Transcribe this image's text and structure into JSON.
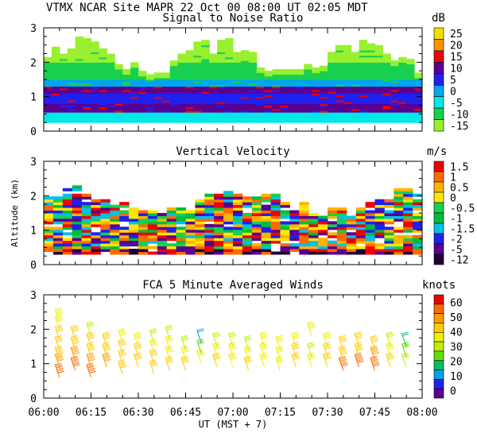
{
  "header": {
    "title": "VTMX  NCAR Site  MAPR 22 Oct 00  08:00 UT  02:05  MDT"
  },
  "chart_data": [
    {
      "type": "heatmap",
      "title": "Signal to Noise Ratio",
      "xlim_minutes": [
        0,
        120
      ],
      "ylim": [
        0,
        3
      ],
      "yticks": [
        "0",
        "1",
        "2",
        "3"
      ],
      "data_range_km": [
        0.25,
        3.0
      ],
      "colorbar": {
        "unit": "dB",
        "labels": [
          "25",
          "20",
          "15",
          "10",
          "5",
          "0",
          "-5",
          "-10",
          "-15"
        ],
        "colors": [
          "#f5df00",
          "#ff9000",
          "#f00000",
          "#5a0090",
          "#2020ee",
          "#00a5ee",
          "#00e8e8",
          "#18d050",
          "#98f030"
        ]
      },
      "profile_color_by_altitude": [
        {
          "alt": 0.3,
          "color": "#00e8e8"
        },
        {
          "alt": 0.5,
          "color": "#5a0090"
        },
        {
          "alt": 0.8,
          "color": "#2020ee"
        },
        {
          "alt": 1.1,
          "color": "#5a0090"
        },
        {
          "alt": 1.3,
          "color": "#00a5ee"
        },
        {
          "alt": 1.5,
          "color": "#18d050"
        },
        {
          "alt": 2.0,
          "color": "#98f030"
        }
      ]
    },
    {
      "type": "heatmap",
      "title": "Vertical Velocity",
      "ylabel": "Altitude (km)",
      "xlim_minutes": [
        0,
        120
      ],
      "ylim": [
        0,
        3
      ],
      "yticks": [
        "0",
        "1",
        "2",
        "3"
      ],
      "data_range_km": [
        0.3,
        2.2
      ],
      "colorbar": {
        "unit": "m/s",
        "labels": [
          "1.5",
          "1",
          "0.5",
          "0",
          "-0.5",
          "-1",
          "-1.5",
          "-2",
          "-5",
          "-12"
        ],
        "colors": [
          "#f00000",
          "#ff6a00",
          "#ffb400",
          "#ffe800",
          "#18d050",
          "#00bb40",
          "#00c0ee",
          "#2020ee",
          "#5a0090",
          "#200030"
        ]
      }
    },
    {
      "type": "scatter",
      "title": "FCA 5 Minute Averaged Winds",
      "xlabel": "UT  (MST + 7)",
      "xlim_minutes": [
        0,
        120
      ],
      "xticks": [
        "06:00",
        "06:15",
        "06:30",
        "06:45",
        "07:00",
        "07:15",
        "07:30",
        "07:45",
        "08:00"
      ],
      "ylim": [
        0,
        3
      ],
      "yticks": [
        "0",
        "1",
        "2",
        "3"
      ],
      "colorbar": {
        "unit": "knots",
        "labels": [
          "60",
          "50",
          "40",
          "30",
          "20",
          "10",
          "0"
        ],
        "colors": [
          "#f00000",
          "#ff6a00",
          "#ff9a00",
          "#ffcc00",
          "#f0f000",
          "#c0f000",
          "#60e000",
          "#00c060",
          "#00a0f0",
          "#2020ee",
          "#5a0090"
        ]
      },
      "profile_times_minutes": [
        5,
        10,
        15,
        20,
        25,
        30,
        35,
        40,
        45,
        50,
        55,
        60,
        65,
        70,
        75,
        80,
        85,
        90,
        95,
        100,
        105,
        110,
        115
      ],
      "barbs": [
        {
          "t": 5,
          "alt": 0.6,
          "kt": 55
        },
        {
          "t": 5,
          "alt": 0.9,
          "kt": 50
        },
        {
          "t": 5,
          "alt": 1.1,
          "kt": 45
        },
        {
          "t": 5,
          "alt": 1.4,
          "kt": 40
        },
        {
          "t": 5,
          "alt": 1.7,
          "kt": 40
        },
        {
          "t": 5,
          "alt": 2.0,
          "kt": 35
        },
        {
          "t": 5,
          "alt": 2.2,
          "kt": 35
        },
        {
          "t": 10,
          "alt": 0.8,
          "kt": 55
        },
        {
          "t": 10,
          "alt": 1.1,
          "kt": 50
        },
        {
          "t": 10,
          "alt": 1.4,
          "kt": 45
        },
        {
          "t": 10,
          "alt": 1.7,
          "kt": 40
        },
        {
          "t": 15,
          "alt": 0.6,
          "kt": 55
        },
        {
          "t": 15,
          "alt": 0.9,
          "kt": 50
        },
        {
          "t": 15,
          "alt": 1.2,
          "kt": 45
        },
        {
          "t": 15,
          "alt": 1.5,
          "kt": 40
        },
        {
          "t": 15,
          "alt": 1.8,
          "kt": 30
        },
        {
          "t": 20,
          "alt": 0.9,
          "kt": 50
        },
        {
          "t": 20,
          "alt": 1.2,
          "kt": 45
        },
        {
          "t": 20,
          "alt": 1.5,
          "kt": 40
        },
        {
          "t": 25,
          "alt": 0.7,
          "kt": 45
        },
        {
          "t": 25,
          "alt": 1.0,
          "kt": 40
        },
        {
          "t": 25,
          "alt": 1.3,
          "kt": 40
        },
        {
          "t": 25,
          "alt": 1.6,
          "kt": 35
        },
        {
          "t": 30,
          "alt": 0.9,
          "kt": 40
        },
        {
          "t": 30,
          "alt": 1.2,
          "kt": 40
        },
        {
          "t": 30,
          "alt": 1.5,
          "kt": 35
        },
        {
          "t": 35,
          "alt": 0.7,
          "kt": 40
        },
        {
          "t": 35,
          "alt": 1.0,
          "kt": 40
        },
        {
          "t": 35,
          "alt": 1.3,
          "kt": 35
        },
        {
          "t": 35,
          "alt": 1.6,
          "kt": 30
        },
        {
          "t": 40,
          "alt": 0.8,
          "kt": 40
        },
        {
          "t": 40,
          "alt": 1.1,
          "kt": 35
        },
        {
          "t": 40,
          "alt": 1.4,
          "kt": 35
        },
        {
          "t": 40,
          "alt": 1.7,
          "kt": 30
        },
        {
          "t": 45,
          "alt": 0.8,
          "kt": 40
        },
        {
          "t": 45,
          "alt": 1.1,
          "kt": 35
        },
        {
          "t": 45,
          "alt": 1.4,
          "kt": 30
        },
        {
          "t": 50,
          "alt": 1.0,
          "kt": 35
        },
        {
          "t": 50,
          "alt": 1.3,
          "kt": 25
        },
        {
          "t": 50,
          "alt": 1.6,
          "kt": 15
        },
        {
          "t": 55,
          "alt": 0.9,
          "kt": 40
        },
        {
          "t": 55,
          "alt": 1.2,
          "kt": 35
        },
        {
          "t": 55,
          "alt": 1.5,
          "kt": 30
        },
        {
          "t": 60,
          "alt": 0.9,
          "kt": 35
        },
        {
          "t": 60,
          "alt": 1.2,
          "kt": 35
        },
        {
          "t": 60,
          "alt": 1.5,
          "kt": 30
        },
        {
          "t": 65,
          "alt": 0.8,
          "kt": 40
        },
        {
          "t": 65,
          "alt": 1.1,
          "kt": 35
        },
        {
          "t": 65,
          "alt": 1.4,
          "kt": 30
        },
        {
          "t": 70,
          "alt": 0.9,
          "kt": 35
        },
        {
          "t": 70,
          "alt": 1.2,
          "kt": 35
        },
        {
          "t": 70,
          "alt": 1.5,
          "kt": 35
        },
        {
          "t": 75,
          "alt": 0.8,
          "kt": 35
        },
        {
          "t": 75,
          "alt": 1.1,
          "kt": 35
        },
        {
          "t": 75,
          "alt": 1.4,
          "kt": 35
        },
        {
          "t": 80,
          "alt": 0.9,
          "kt": 40
        },
        {
          "t": 80,
          "alt": 1.2,
          "kt": 40
        },
        {
          "t": 80,
          "alt": 1.5,
          "kt": 35
        },
        {
          "t": 85,
          "alt": 0.9,
          "kt": 35
        },
        {
          "t": 85,
          "alt": 1.2,
          "kt": 30
        },
        {
          "t": 85,
          "alt": 1.8,
          "kt": 35
        },
        {
          "t": 90,
          "alt": 0.9,
          "kt": 40
        },
        {
          "t": 90,
          "alt": 1.2,
          "kt": 40
        },
        {
          "t": 90,
          "alt": 1.5,
          "kt": 35
        },
        {
          "t": 95,
          "alt": 0.8,
          "kt": 55
        },
        {
          "t": 95,
          "alt": 1.1,
          "kt": 45
        },
        {
          "t": 95,
          "alt": 1.4,
          "kt": 40
        },
        {
          "t": 100,
          "alt": 0.9,
          "kt": 55
        },
        {
          "t": 100,
          "alt": 1.2,
          "kt": 45
        },
        {
          "t": 100,
          "alt": 1.5,
          "kt": 40
        },
        {
          "t": 105,
          "alt": 0.8,
          "kt": 55
        },
        {
          "t": 105,
          "alt": 1.1,
          "kt": 50
        },
        {
          "t": 105,
          "alt": 1.4,
          "kt": 40
        },
        {
          "t": 110,
          "alt": 0.9,
          "kt": 40
        },
        {
          "t": 110,
          "alt": 1.2,
          "kt": 35
        },
        {
          "t": 110,
          "alt": 1.5,
          "kt": 30
        },
        {
          "t": 115,
          "alt": 0.9,
          "kt": 30
        },
        {
          "t": 115,
          "alt": 1.2,
          "kt": 25
        },
        {
          "t": 115,
          "alt": 1.5,
          "kt": 20
        }
      ]
    }
  ]
}
